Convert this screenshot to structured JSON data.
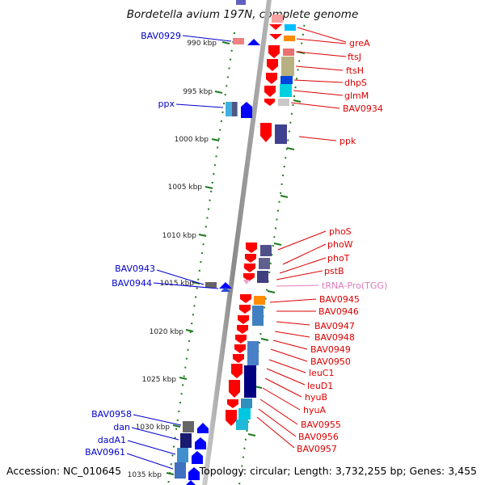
{
  "title": "Bordetella avium 197N, complete genome",
  "footer": {
    "accession": "Accession: NC_010645",
    "topology": "Topology: circular; Length: 3,732,255 bp; Genes: 3,455"
  },
  "colors": {
    "backbone": "#9a9a9a",
    "tick": "#1f7a1f",
    "forward_label": "#0000cc",
    "reverse_label": "#dd0000",
    "rna_label": "#e07ab8"
  },
  "scale": {
    "ticks": [
      "990 kbp",
      "995 kbp",
      "1000 kbp",
      "1005 kbp",
      "1010 kbp",
      "1015 kbp",
      "1020 kbp",
      "1025 kbp",
      "1030 kbp",
      "1035 kbp"
    ]
  },
  "genes_left": [
    {
      "name": "BAV0929",
      "strand": "+"
    },
    {
      "name": "ppx",
      "strand": "+"
    },
    {
      "name": "BAV0943",
      "strand": "+"
    },
    {
      "name": "BAV0944",
      "strand": "+"
    },
    {
      "name": "BAV0958",
      "strand": "+"
    },
    {
      "name": "dan",
      "strand": "+"
    },
    {
      "name": "dadA1",
      "strand": "+"
    },
    {
      "name": "BAV0961",
      "strand": "+"
    }
  ],
  "genes_right": [
    {
      "name": "greA",
      "strand": "-"
    },
    {
      "name": "ftsJ",
      "strand": "-"
    },
    {
      "name": "ftsH",
      "strand": "-"
    },
    {
      "name": "dhpS",
      "strand": "-"
    },
    {
      "name": "glmM",
      "strand": "-"
    },
    {
      "name": "BAV0934",
      "strand": "-"
    },
    {
      "name": "ppk",
      "strand": "-"
    },
    {
      "name": "phoS",
      "strand": "-"
    },
    {
      "name": "phoW",
      "strand": "-"
    },
    {
      "name": "phoT",
      "strand": "-"
    },
    {
      "name": "pstB",
      "strand": "-"
    },
    {
      "name": "tRNA-Pro(TGG)",
      "strand": "-",
      "type": "rna"
    },
    {
      "name": "BAV0945",
      "strand": "-"
    },
    {
      "name": "BAV0946",
      "strand": "-"
    },
    {
      "name": "BAV0947",
      "strand": "-"
    },
    {
      "name": "BAV0948",
      "strand": "-"
    },
    {
      "name": "BAV0949",
      "strand": "-"
    },
    {
      "name": "BAV0950",
      "strand": "-"
    },
    {
      "name": "leuC1",
      "strand": "-"
    },
    {
      "name": "leuD1",
      "strand": "-"
    },
    {
      "name": "hyuB",
      "strand": "-"
    },
    {
      "name": "hyuA",
      "strand": "-"
    },
    {
      "name": "BAV0955",
      "strand": "-"
    },
    {
      "name": "BAV0956",
      "strand": "-"
    },
    {
      "name": "BAV0957",
      "strand": "-"
    }
  ]
}
